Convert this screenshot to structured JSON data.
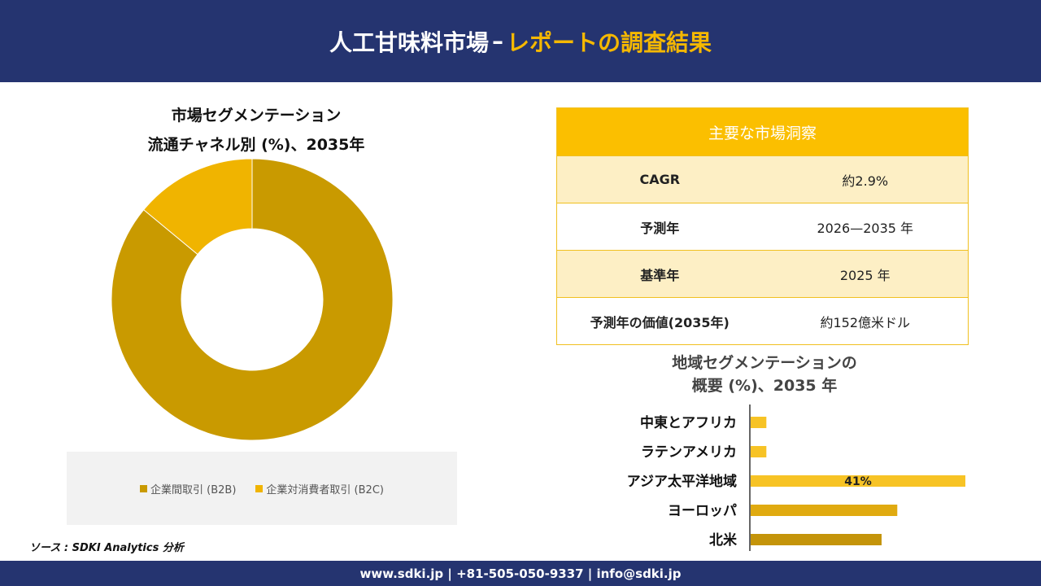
{
  "header": {
    "title_main": "人工甘味料市場",
    "title_dash": "–",
    "title_accent": "レポートの調査結果"
  },
  "donut": {
    "title_line1": "市場セグメンテーション",
    "title_line2": "流通チャネル別 (%)、2035年"
  },
  "insights": {
    "heading": "主要な市場洞察",
    "rows": [
      {
        "key": "CAGR",
        "value": "約2.9%"
      },
      {
        "key": "予測年",
        "value": "2026—2035 年"
      },
      {
        "key": "基準年",
        "value": "2025 年"
      },
      {
        "key": "予測年の価値(2035年)",
        "value": "約152億米ドル"
      }
    ]
  },
  "bars": {
    "title_line1": "地域セグメンテーションの",
    "title_line2": "概要 (%)、2035 年"
  },
  "source": "ソース : SDKI Analytics 分析",
  "footer": "www.sdki.jp | +81-505-050-9337 | info@sdki.jp",
  "chart_data": [
    {
      "type": "pie",
      "title": "市場セグメンテーション 流通チャネル別 (%)、2035年",
      "categories": [
        "企業間取引 (B2B)",
        "企業対消費者取引 (B2C)"
      ],
      "values": [
        86,
        14
      ],
      "colors": [
        "#c99a00",
        "#f0b400"
      ],
      "legend": "bottom"
    },
    {
      "type": "bar",
      "orientation": "horizontal",
      "title": "地域セグメンテーションの 概要 (%)、2035 年",
      "categories": [
        "中東とアフリカ",
        "ラテンアメリカ",
        "アジア太平洋地域",
        "ヨーロッパ",
        "北米"
      ],
      "values": [
        3,
        3,
        41,
        28,
        25
      ],
      "data_labels": [
        "",
        "",
        "41%",
        "",
        ""
      ],
      "colors": [
        "#f7c325",
        "#f7c325",
        "#f7c325",
        "#e0aa10",
        "#c4940a"
      ]
    }
  ]
}
